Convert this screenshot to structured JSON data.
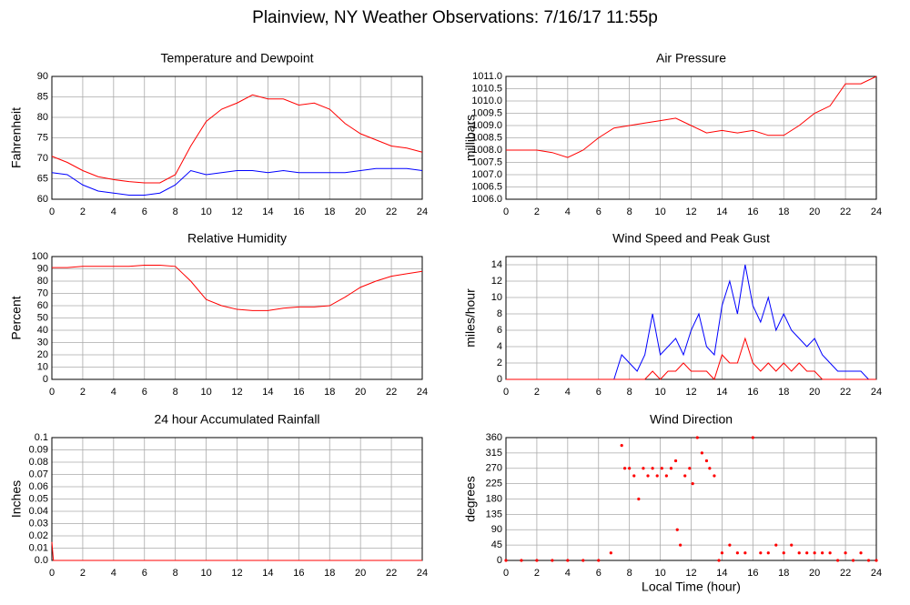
{
  "title": "Plainview, NY Weather Observations: 7/16/17 11:55p",
  "chart_data": [
    {
      "type": "line",
      "title": "Temperature and Dewpoint",
      "ylabel": "Fahrenheit",
      "x": [
        0,
        1,
        2,
        3,
        4,
        5,
        6,
        7,
        8,
        9,
        10,
        11,
        12,
        13,
        14,
        15,
        16,
        17,
        18,
        19,
        20,
        21,
        22,
        23,
        24
      ],
      "series": [
        {
          "color": "#ff0000",
          "values": [
            70.5,
            69,
            67,
            65.5,
            64.8,
            64.3,
            64,
            64,
            66,
            73,
            79,
            82,
            83.5,
            85.5,
            84.5,
            84.5,
            83,
            83.5,
            82,
            78.5,
            76,
            74.5,
            73,
            72.5,
            71.5
          ]
        },
        {
          "color": "#0000ff",
          "values": [
            66.5,
            66,
            63.5,
            62,
            61.5,
            61,
            61,
            61.5,
            63.5,
            67,
            66,
            66.5,
            67,
            67,
            66.5,
            67,
            66.5,
            66.5,
            66.5,
            66.5,
            67,
            67.5,
            67.5,
            67.5,
            67
          ]
        }
      ],
      "xlim": [
        0,
        24
      ],
      "xticks": [
        0,
        2,
        4,
        6,
        8,
        10,
        12,
        14,
        16,
        18,
        20,
        22,
        24
      ],
      "ylim": [
        60,
        90
      ],
      "yticks": [
        60,
        65,
        70,
        75,
        80,
        85,
        90
      ],
      "grid": true
    },
    {
      "type": "line",
      "title": "Air Pressure",
      "ylabel": "millibars",
      "x": [
        0,
        1,
        2,
        3,
        4,
        5,
        6,
        7,
        8,
        9,
        10,
        11,
        12,
        13,
        14,
        15,
        16,
        17,
        18,
        19,
        20,
        21,
        22,
        23,
        24
      ],
      "series": [
        {
          "color": "#ff0000",
          "values": [
            1008.0,
            1008.0,
            1008.0,
            1007.9,
            1007.7,
            1008.0,
            1008.5,
            1008.9,
            1009.0,
            1009.1,
            1009.2,
            1009.3,
            1009.0,
            1008.7,
            1008.8,
            1008.7,
            1008.8,
            1008.6,
            1008.6,
            1009.0,
            1009.5,
            1009.8,
            1010.7,
            1010.7,
            1011.0
          ]
        }
      ],
      "xlim": [
        0,
        24
      ],
      "xticks": [
        0,
        2,
        4,
        6,
        8,
        10,
        12,
        14,
        16,
        18,
        20,
        22,
        24
      ],
      "ylim": [
        1006,
        1011
      ],
      "yticks": [
        {
          "value": 1006,
          "label": "1006.0"
        },
        1006.5,
        {
          "value": 1007,
          "label": "1007.0"
        },
        1007.5,
        {
          "value": 1008,
          "label": "1008.0"
        },
        1008.5,
        {
          "value": 1009,
          "label": "1009.0"
        },
        1009.5,
        {
          "value": 1010,
          "label": "1010.0"
        },
        1010.5,
        {
          "value": 1011,
          "label": "1011.0"
        }
      ],
      "grid": true
    },
    {
      "type": "line",
      "title": "Relative Humidity",
      "ylabel": "Percent",
      "x": [
        0,
        1,
        2,
        3,
        4,
        5,
        6,
        7,
        8,
        9,
        10,
        11,
        12,
        13,
        14,
        15,
        16,
        17,
        18,
        19,
        20,
        21,
        22,
        23,
        24
      ],
      "series": [
        {
          "color": "#ff0000",
          "values": [
            91,
            91,
            92,
            92,
            92,
            92,
            93,
            93,
            92,
            80,
            65,
            60,
            57,
            56,
            56,
            58,
            59,
            59,
            60,
            67,
            75,
            80,
            84,
            86,
            88
          ]
        }
      ],
      "xlim": [
        0,
        24
      ],
      "xticks": [
        0,
        2,
        4,
        6,
        8,
        10,
        12,
        14,
        16,
        18,
        20,
        22,
        24
      ],
      "ylim": [
        0,
        100
      ],
      "yticks": [
        0,
        10,
        20,
        30,
        40,
        50,
        60,
        70,
        80,
        90,
        100
      ],
      "grid": true
    },
    {
      "type": "line",
      "title": "Wind Speed and Peak Gust",
      "ylabel": "miles/hour",
      "x": [
        0,
        0.5,
        1,
        1.5,
        2,
        2.5,
        3,
        3.5,
        4,
        4.5,
        5,
        5.5,
        6,
        6.5,
        7,
        7.5,
        8,
        8.5,
        9,
        9.5,
        10,
        10.5,
        11,
        11.5,
        12,
        12.5,
        13,
        13.5,
        14,
        14.5,
        15,
        15.5,
        16,
        16.5,
        17,
        17.5,
        18,
        18.5,
        19,
        19.5,
        20,
        20.5,
        21,
        21.5,
        22,
        22.5,
        23,
        23.5,
        24
      ],
      "series": [
        {
          "color": "#0000ff",
          "values": [
            0,
            0,
            0,
            0,
            0,
            0,
            0,
            0,
            0,
            0,
            0,
            0,
            0,
            0,
            0,
            3,
            2,
            1,
            3,
            8,
            3,
            4,
            5,
            3,
            6,
            8,
            4,
            3,
            9,
            12,
            8,
            14,
            9,
            7,
            10,
            6,
            8,
            6,
            5,
            4,
            5,
            3,
            2,
            1,
            1,
            1,
            1,
            0,
            0
          ]
        },
        {
          "color": "#ff0000",
          "values": [
            0,
            0,
            0,
            0,
            0,
            0,
            0,
            0,
            0,
            0,
            0,
            0,
            0,
            0,
            0,
            0,
            0,
            0,
            0,
            1,
            0,
            1,
            1,
            2,
            1,
            1,
            1,
            0,
            3,
            2,
            2,
            5,
            2,
            1,
            2,
            1,
            2,
            1,
            2,
            1,
            1,
            0,
            0,
            0,
            0,
            0,
            0,
            0,
            0
          ]
        }
      ],
      "xlim": [
        0,
        24
      ],
      "xticks": [
        0,
        2,
        4,
        6,
        8,
        10,
        12,
        14,
        16,
        18,
        20,
        22,
        24
      ],
      "ylim": [
        0,
        15
      ],
      "yticks": [
        0,
        2,
        4,
        6,
        8,
        10,
        12,
        14
      ],
      "grid": true
    },
    {
      "type": "line",
      "title": "24 hour Accumulated Rainfall",
      "ylabel": "Inches",
      "x": [
        0,
        0.1,
        24
      ],
      "series": [
        {
          "color": "#ff0000",
          "values": [
            0.015,
            0,
            0
          ]
        }
      ],
      "xlim": [
        0,
        24
      ],
      "xticks": [
        0,
        2,
        4,
        6,
        8,
        10,
        12,
        14,
        16,
        18,
        20,
        22,
        24
      ],
      "ylim": [
        0,
        0.1
      ],
      "yticks": [
        {
          "value": 0,
          "label": "0.0"
        },
        0.01,
        0.02,
        0.03,
        0.04,
        0.05,
        0.06,
        0.07,
        0.08,
        0.09,
        0.1
      ],
      "grid": true
    },
    {
      "type": "scatter",
      "title": "Wind Direction",
      "ylabel": "degrees",
      "xlabel": "Local Time (hour)",
      "x": [
        0,
        1,
        2,
        3,
        4,
        5,
        6,
        6.8,
        7.5,
        7.7,
        8,
        8.3,
        8.6,
        8.9,
        9.2,
        9.5,
        9.8,
        10.1,
        10.4,
        10.7,
        11,
        11.1,
        11.3,
        11.6,
        11.9,
        12.1,
        12.4,
        12.7,
        13,
        13.2,
        13.5,
        13.8,
        14,
        14.5,
        15,
        15.5,
        16,
        16.5,
        17,
        17.5,
        18,
        18.5,
        19,
        19.5,
        20,
        20.5,
        21,
        21.5,
        22,
        22.5,
        23,
        23.5,
        24
      ],
      "series": [
        {
          "color": "#ff0000",
          "values": [
            0,
            0,
            0,
            0,
            0,
            0,
            0,
            22,
            337,
            270,
            270,
            248,
            180,
            270,
            248,
            270,
            248,
            270,
            248,
            270,
            292,
            90,
            45,
            248,
            270,
            225,
            360,
            315,
            292,
            270,
            248,
            0,
            22,
            45,
            22,
            22,
            360,
            22,
            22,
            45,
            22,
            45,
            22,
            22,
            22,
            22,
            22,
            0,
            22,
            0,
            22,
            0,
            0
          ]
        }
      ],
      "xlim": [
        0,
        24
      ],
      "xticks": [
        0,
        2,
        4,
        6,
        8,
        10,
        12,
        14,
        16,
        18,
        20,
        22,
        24
      ],
      "ylim": [
        0,
        360
      ],
      "yticks": [
        0,
        45,
        90,
        135,
        180,
        225,
        270,
        315,
        360
      ],
      "grid": true
    }
  ]
}
